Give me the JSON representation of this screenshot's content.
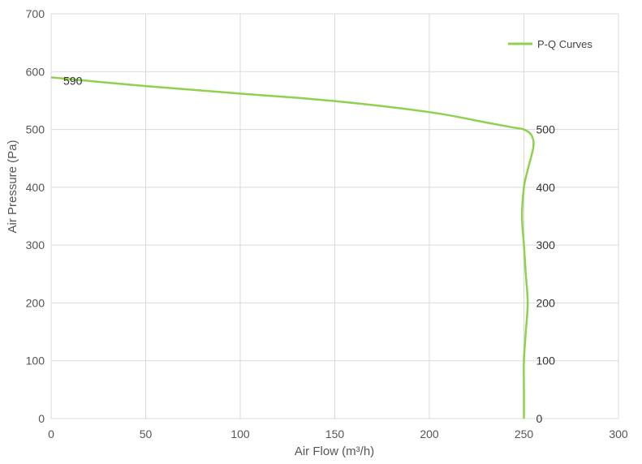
{
  "chart_data": {
    "type": "line",
    "xlabel": "Air Flow  (m³/h)",
    "ylabel": "Air Pressure  (Pa)",
    "xlim": [
      0,
      300
    ],
    "ylim": [
      0,
      700
    ],
    "xticks": [
      0,
      50,
      100,
      150,
      200,
      250,
      300
    ],
    "yticks": [
      0,
      100,
      200,
      300,
      400,
      500,
      600,
      700
    ],
    "grid": true,
    "legend_position": "top-right",
    "series": [
      {
        "name": "P-Q Curves",
        "color": "#8fd14f",
        "x": [
          0,
          50,
          100,
          150,
          200,
          230,
          245,
          250,
          254,
          255,
          252,
          250,
          249,
          250,
          251,
          252,
          251,
          250,
          250,
          250
        ],
        "y": [
          590,
          575,
          562,
          549,
          530,
          512,
          503,
          500,
          490,
          470,
          430,
          400,
          350,
          300,
          250,
          200,
          150,
          100,
          50,
          0
        ]
      }
    ],
    "data_labels": [
      {
        "text": "590",
        "x": 0,
        "y": 590
      },
      {
        "text": "500",
        "x": 250,
        "y": 500
      },
      {
        "text": "400",
        "x": 250,
        "y": 400
      },
      {
        "text": "300",
        "x": 250,
        "y": 300
      },
      {
        "text": "200",
        "x": 250,
        "y": 200
      },
      {
        "text": "100",
        "x": 250,
        "y": 100
      },
      {
        "text": "0",
        "x": 250,
        "y": 0
      }
    ]
  }
}
